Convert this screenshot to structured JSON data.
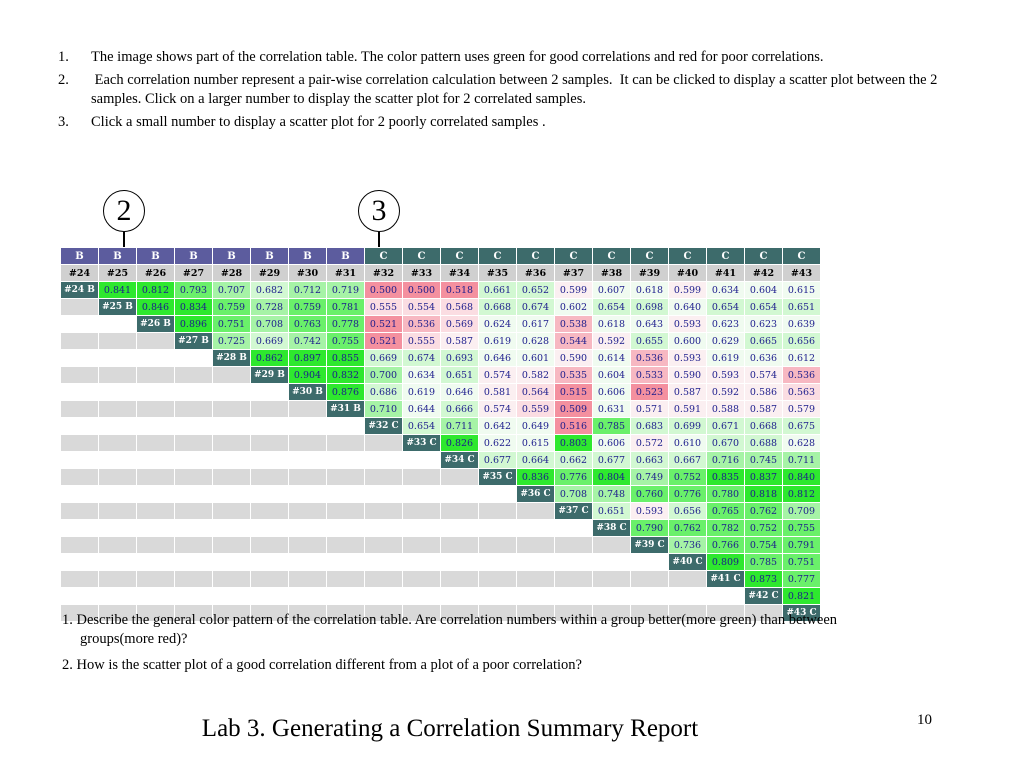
{
  "instructions": [
    {
      "num": "1.",
      "text": "The image shows part of the correlation table.  The color pattern uses green for good correlations and red for poor correlations."
    },
    {
      "num": "2.",
      "text": " Each correlation number represent a pair-wise correlation calculation between 2 samples.  It can be clicked to display a scatter plot between the 2 samples. Click on a larger number to display the scatter plot for 2 correlated samples."
    },
    {
      "num": "3.",
      "text": "Click a small number to display a scatter plot for 2 poorly correlated samples ."
    }
  ],
  "callouts": [
    "2",
    "3"
  ],
  "table": {
    "groups": [
      "B",
      "B",
      "B",
      "B",
      "B",
      "B",
      "B",
      "B",
      "C",
      "C",
      "C",
      "C",
      "C",
      "C",
      "C",
      "C",
      "C",
      "C",
      "C",
      "C"
    ],
    "group_colors": {
      "B": "#5c5c9e",
      "C": "#3d6b6b"
    },
    "sample_ids": [
      "#24",
      "#25",
      "#26",
      "#27",
      "#28",
      "#29",
      "#30",
      "#31",
      "#32",
      "#33",
      "#34",
      "#35",
      "#36",
      "#37",
      "#38",
      "#39",
      "#40",
      "#41",
      "#42",
      "#43"
    ],
    "row_labels": [
      "#24 B",
      "#25 B",
      "#26 B",
      "#27 B",
      "#28 B",
      "#29 B",
      "#30 B",
      "#31 B",
      "#32 C",
      "#33 C",
      "#34 C",
      "#35 C",
      "#36 C",
      "#37 C",
      "#38 C",
      "#39 C",
      "#40 C",
      "#41 C",
      "#42 C",
      "#43 C"
    ],
    "rows": [
      [
        "0.841",
        "0.812",
        "0.793",
        "0.707",
        "0.682",
        "0.712",
        "0.719",
        "0.500",
        "0.500",
        "0.518",
        "0.661",
        "0.652",
        "0.599",
        "0.607",
        "0.618",
        "0.599",
        "0.634",
        "0.604",
        "0.615"
      ],
      [
        "0.846",
        "0.834",
        "0.759",
        "0.728",
        "0.759",
        "0.781",
        "0.555",
        "0.554",
        "0.568",
        "0.668",
        "0.674",
        "0.602",
        "0.654",
        "0.698",
        "0.640",
        "0.654",
        "0.654",
        "0.651"
      ],
      [
        "0.896",
        "0.751",
        "0.708",
        "0.763",
        "0.778",
        "0.521",
        "0.536",
        "0.569",
        "0.624",
        "0.617",
        "0.538",
        "0.618",
        "0.643",
        "0.593",
        "0.623",
        "0.623",
        "0.639"
      ],
      [
        "0.725",
        "0.669",
        "0.742",
        "0.755",
        "0.521",
        "0.555",
        "0.587",
        "0.619",
        "0.628",
        "0.544",
        "0.592",
        "0.655",
        "0.600",
        "0.629",
        "0.665",
        "0.656"
      ],
      [
        "0.862",
        "0.897",
        "0.855",
        "0.669",
        "0.674",
        "0.693",
        "0.646",
        "0.601",
        "0.590",
        "0.614",
        "0.536",
        "0.593",
        "0.619",
        "0.636",
        "0.612"
      ],
      [
        "0.904",
        "0.832",
        "0.700",
        "0.634",
        "0.651",
        "0.574",
        "0.582",
        "0.535",
        "0.604",
        "0.533",
        "0.590",
        "0.593",
        "0.574",
        "0.536"
      ],
      [
        "0.876",
        "0.686",
        "0.619",
        "0.646",
        "0.581",
        "0.564",
        "0.515",
        "0.606",
        "0.523",
        "0.587",
        "0.592",
        "0.586",
        "0.563"
      ],
      [
        "0.710",
        "0.644",
        "0.666",
        "0.574",
        "0.559",
        "0.509",
        "0.631",
        "0.571",
        "0.591",
        "0.588",
        "0.587",
        "0.579"
      ],
      [
        "0.654",
        "0.711",
        "0.642",
        "0.649",
        "0.516",
        "0.785",
        "0.683",
        "0.699",
        "0.671",
        "0.668",
        "0.675"
      ],
      [
        "0.826",
        "0.622",
        "0.615",
        "0.803",
        "0.606",
        "0.572",
        "0.610",
        "0.670",
        "0.688",
        "0.628"
      ],
      [
        "0.677",
        "0.664",
        "0.662",
        "0.677",
        "0.663",
        "0.667",
        "0.716",
        "0.745",
        "0.711"
      ],
      [
        "0.836",
        "0.776",
        "0.804",
        "0.749",
        "0.752",
        "0.835",
        "0.837",
        "0.840"
      ],
      [
        "0.708",
        "0.748",
        "0.760",
        "0.776",
        "0.780",
        "0.818",
        "0.812"
      ],
      [
        "0.651",
        "0.593",
        "0.656",
        "0.765",
        "0.762",
        "0.709"
      ],
      [
        "0.790",
        "0.762",
        "0.782",
        "0.752",
        "0.755"
      ],
      [
        "0.736",
        "0.766",
        "0.754",
        "0.791"
      ],
      [
        "0.809",
        "0.785",
        "0.751"
      ],
      [
        "0.873",
        "0.777"
      ],
      [
        "0.821"
      ],
      []
    ]
  },
  "questions": [
    "1. Describe the general color pattern of the correlation table.  Are correlation numbers within a group better(more green) than between groups(more red)?",
    "2. How is the scatter plot of a good correlation different from a plot of a poor correlation?"
  ],
  "slide_title": "Lab 3. Generating a Correlation Summary Report",
  "page_number": "10"
}
